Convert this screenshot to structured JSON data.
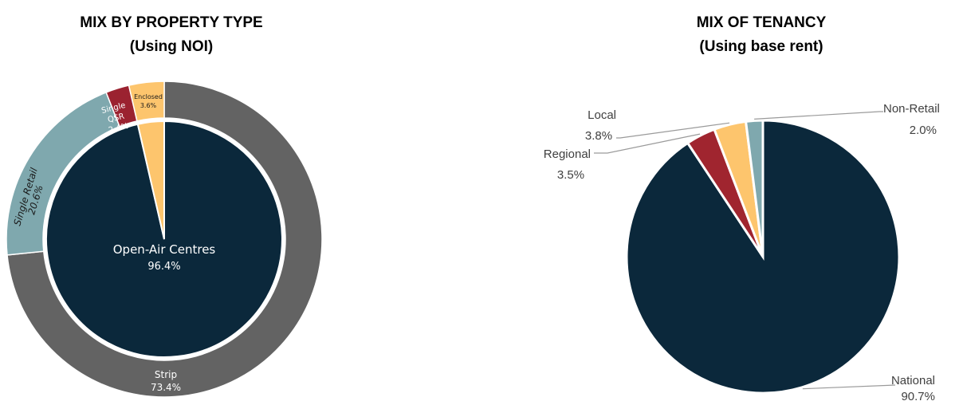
{
  "chart_data": [
    {
      "type": "pie",
      "subtype": "nested-donut",
      "title": "MIX BY PROPERTY TYPE",
      "subtitle": "(Using NOI)",
      "inner": [
        {
          "label": "Open-Air Centres",
          "value_label": "96.4%",
          "value": 96.4,
          "color": "#0b283b"
        },
        {
          "label": "Enclosed",
          "value_label": "3.6%",
          "value": 3.6,
          "color": "#fdc56d"
        }
      ],
      "outer": [
        {
          "label": "Strip",
          "value_label": "73.4%",
          "value": 73.4,
          "color": "#636363"
        },
        {
          "label": "Single Retail",
          "value_label": "20.6%",
          "value": 20.6,
          "color": "#7fa8ae"
        },
        {
          "label": "Single QSR",
          "label_lines": [
            "Single",
            "QSR"
          ],
          "value_label": "2.4%",
          "value": 2.4,
          "color": "#9b2230"
        },
        {
          "label": "Enclosed",
          "value_label": "3.6%",
          "value": 3.6,
          "color": "#fdc56d"
        }
      ]
    },
    {
      "type": "pie",
      "title": "MIX OF TENANCY",
      "subtitle": "(Using base rent)",
      "slices": [
        {
          "label": "National",
          "value_label": "90.7%",
          "value": 90.7,
          "color": "#0b283b"
        },
        {
          "label": "Regional",
          "value_label": "3.5%",
          "value": 3.5,
          "color": "#a0252f"
        },
        {
          "label": "Local",
          "value_label": "3.8%",
          "value": 3.8,
          "color": "#fdc56d"
        },
        {
          "label": "Non-Retail",
          "value_label": "2.0%",
          "value": 2.0,
          "color": "#7fa8ae"
        }
      ]
    }
  ]
}
